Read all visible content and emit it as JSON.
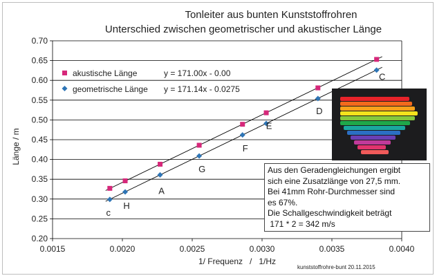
{
  "chart_data": {
    "type": "scatter",
    "title": "Tonleiter aus bunten Kunststoffrohren",
    "subtitle": "Unterschied zwischen geometrischer und akustischer Länge",
    "xlabel": "1/ Frequenz   /   1/Hz",
    "ylabel": "Länge / m",
    "xlim": [
      0.0015,
      0.004
    ],
    "ylim": [
      0.2,
      0.7
    ],
    "xticks": [
      "0.0015",
      "0.0020",
      "0.0025",
      "0.0030",
      "0.0035",
      "0.0040"
    ],
    "yticks": [
      "0.20",
      "0.25",
      "0.30",
      "0.35",
      "0.40",
      "0.45",
      "0.50",
      "0.55",
      "0.60",
      "0.65",
      "0.70"
    ],
    "grid": "horizontal",
    "legend_position": "top-left",
    "series": [
      {
        "name": "akustische Länge",
        "marker": "square",
        "color": "#d6287a",
        "trendline": "y = 171.00x - 0.00",
        "slope": 171.0,
        "intercept": 0.0,
        "x": [
          0.00191,
          0.00202,
          0.00227,
          0.00255,
          0.00286,
          0.00303,
          0.0034,
          0.00382
        ],
        "y": [
          0.327,
          0.346,
          0.388,
          0.436,
          0.489,
          0.518,
          0.581,
          0.653
        ]
      },
      {
        "name": "geometrische Länge",
        "marker": "diamond",
        "color": "#2e75b6",
        "trendline": "y = 171.14x - 0.0275",
        "slope": 171.14,
        "intercept": -0.0275,
        "x": [
          0.00191,
          0.00202,
          0.00227,
          0.00255,
          0.00286,
          0.00303,
          0.0034,
          0.00382
        ],
        "y": [
          0.299,
          0.318,
          0.361,
          0.409,
          0.462,
          0.491,
          0.554,
          0.626
        ]
      }
    ],
    "annotations": [
      {
        "text": "c",
        "x": 0.0019,
        "y": 0.258
      },
      {
        "text": "H",
        "x": 0.00203,
        "y": 0.275
      },
      {
        "text": "A",
        "x": 0.00228,
        "y": 0.313
      },
      {
        "text": "G",
        "x": 0.00257,
        "y": 0.368
      },
      {
        "text": "F",
        "x": 0.00288,
        "y": 0.42
      },
      {
        "text": "E",
        "x": 0.00305,
        "y": 0.477
      },
      {
        "text": "D",
        "x": 0.00341,
        "y": 0.515
      },
      {
        "text": "C",
        "x": 0.00386,
        "y": 0.601
      }
    ]
  },
  "info_box": {
    "lines": [
      "Aus den Geradengleichungen ergibt",
      "sich eine Zusatzlänge von 27,5  mm.",
      "Bei 41mm Rohr-Durchmesser sind",
      "es 67%.",
      "Die Schallgeschwindigkeit beträgt",
      " 171 * 2 = 342 m/s"
    ]
  },
  "photo": {
    "tube_colors": [
      "#e8232a",
      "#f36a1c",
      "#f9a11b",
      "#f4e31c",
      "#86c83d",
      "#1fa84a",
      "#1aa7a0",
      "#2b6fc4",
      "#6a3fb5",
      "#c03a9a",
      "#e2336e",
      "#f05a5a"
    ]
  },
  "footer_note": "kunststoffrohre-bunt  20.11.2015",
  "colors": {
    "grid": "#000000",
    "line": "#000000",
    "frame": "#bdbdbd"
  }
}
